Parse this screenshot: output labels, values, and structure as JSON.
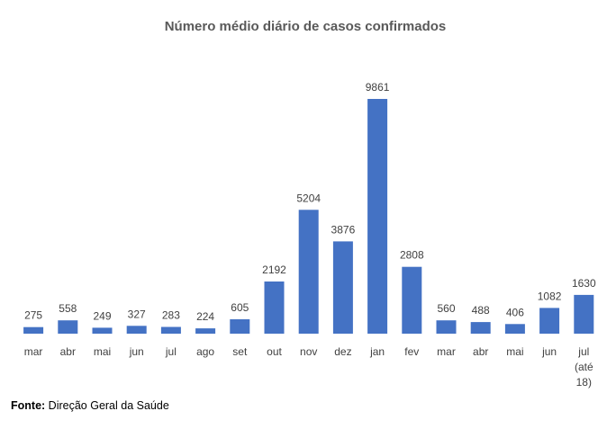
{
  "chart_data": {
    "type": "bar",
    "title": "Número médio diário de casos confirmados",
    "categories": [
      [
        "mar"
      ],
      [
        "abr"
      ],
      [
        "mai"
      ],
      [
        "jun"
      ],
      [
        "jul"
      ],
      [
        "ago"
      ],
      [
        "set"
      ],
      [
        "out"
      ],
      [
        "nov"
      ],
      [
        "dez"
      ],
      [
        "jan"
      ],
      [
        "fev"
      ],
      [
        "mar"
      ],
      [
        "abr"
      ],
      [
        "mai"
      ],
      [
        "jun"
      ],
      [
        "jul",
        "(até",
        "18)"
      ]
    ],
    "values": [
      275,
      558,
      249,
      327,
      283,
      224,
      605,
      2192,
      5204,
      3876,
      9861,
      2808,
      560,
      488,
      406,
      1082,
      1630
    ],
    "ylim": [
      0,
      10000
    ],
    "bar_color": "#4472C4",
    "xlabel": "",
    "ylabel": "",
    "grid": false
  },
  "source": {
    "label": "Fonte:",
    "text": "Direção Geral da Saúde"
  }
}
